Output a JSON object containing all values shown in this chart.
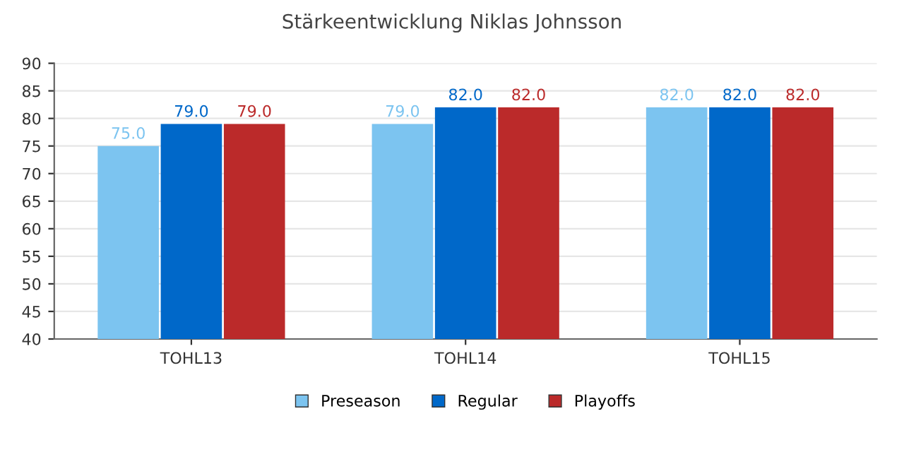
{
  "chart_data": {
    "type": "bar",
    "title": "Stärkeentwicklung Niklas Johnsson",
    "categories": [
      "TOHL13",
      "TOHL14",
      "TOHL15"
    ],
    "series": [
      {
        "name": "Preseason",
        "color": "#7cc4f0",
        "values": [
          75.0,
          79.0,
          82.0
        ],
        "value_labels": [
          "75.0",
          "79.0",
          "82.0"
        ]
      },
      {
        "name": "Regular",
        "color": "#0068c9",
        "values": [
          79.0,
          82.0,
          82.0
        ],
        "value_labels": [
          "79.0",
          "82.0",
          "82.0"
        ]
      },
      {
        "name": "Playoffs",
        "color": "#bb2a2a",
        "values": [
          79.0,
          82.0,
          82.0
        ],
        "value_labels": [
          "79.0",
          "82.0",
          "82.0"
        ]
      }
    ],
    "ylim": [
      40,
      90
    ],
    "yticks": [
      40,
      45,
      50,
      55,
      60,
      65,
      70,
      75,
      80,
      85,
      90
    ],
    "grid": "y",
    "legend": "bottom"
  }
}
